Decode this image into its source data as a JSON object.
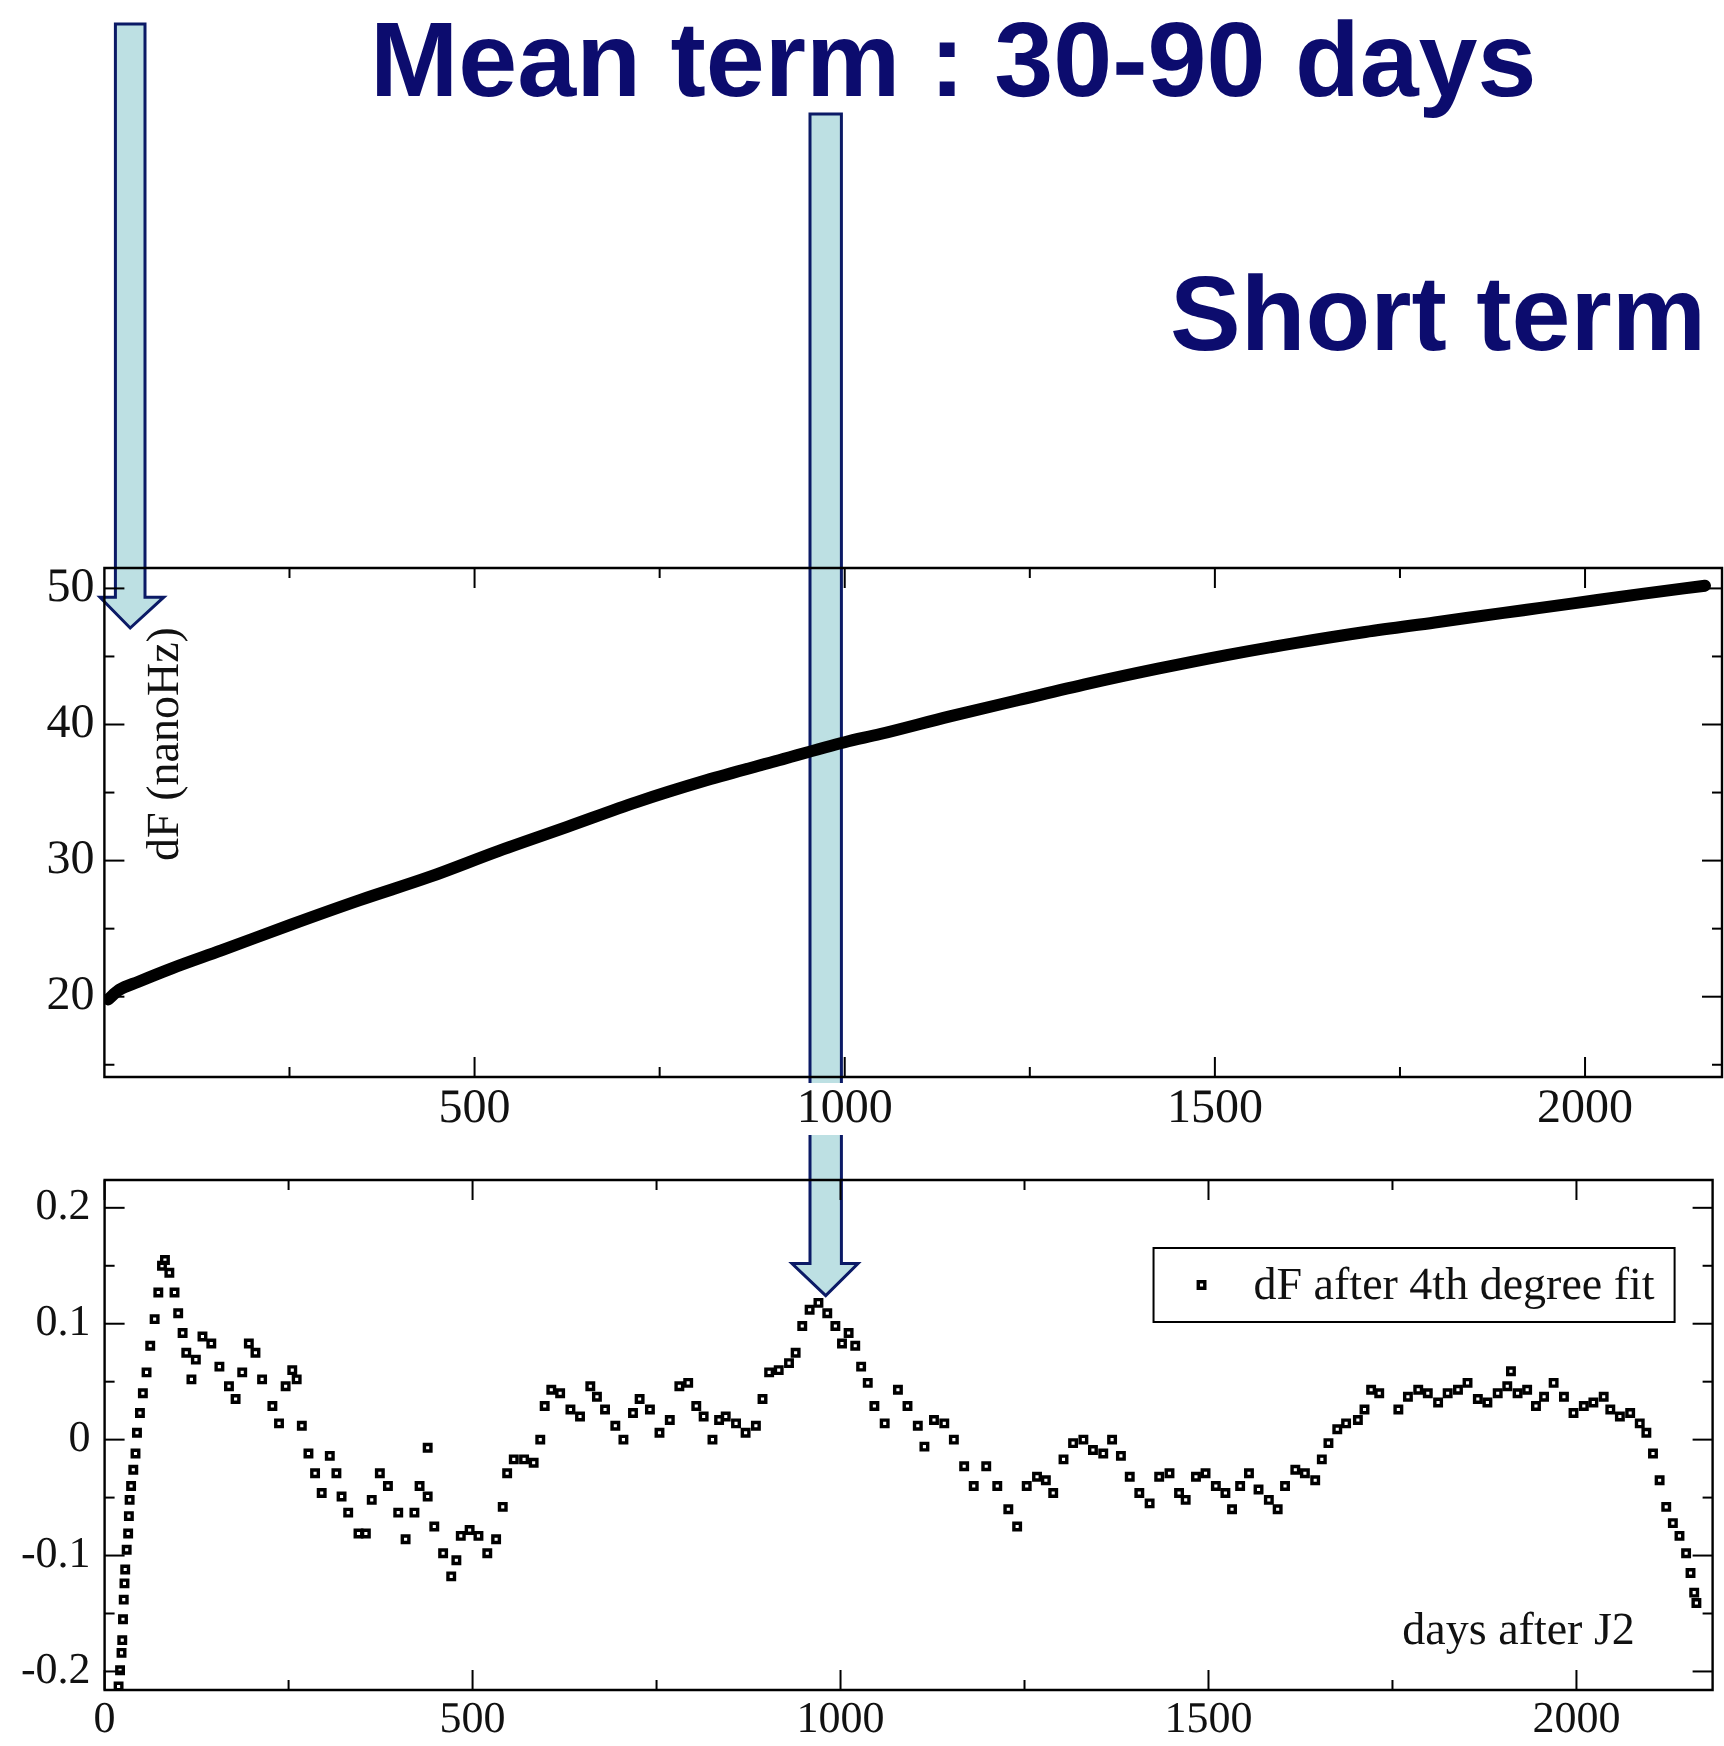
{
  "chart_data": [
    {
      "type": "line",
      "ylabel": "dF (nanoHz)",
      "annotations": [
        "Mean term : 30-90 days",
        "Short term"
      ],
      "marker": "none",
      "color": "#000000",
      "x": [
        5,
        20,
        46,
        92,
        158,
        252,
        345,
        439,
        532,
        626,
        719,
        813,
        906,
        1000,
        1048,
        1142,
        1235,
        1329,
        1423,
        1516,
        1610,
        1703,
        1797,
        1890,
        1984,
        2077,
        2162
      ],
      "values": [
        19.8,
        20.5,
        21.1,
        22.1,
        23.4,
        25.3,
        27.1,
        28.8,
        30.7,
        32.5,
        34.3,
        35.9,
        37.3,
        38.7,
        39.3,
        40.6,
        41.8,
        43.0,
        44.1,
        45.1,
        46.0,
        46.8,
        47.5,
        48.2,
        48.9,
        49.6,
        50.2
      ],
      "xlim": [
        0,
        2185
      ],
      "ylim": [
        14.1,
        51.5
      ],
      "xticks": [
        {
          "value": 250,
          "label": null
        },
        500,
        {
          "value": 750,
          "label": null
        },
        1000,
        {
          "value": 1250,
          "label": null
        },
        1500,
        {
          "value": 1750,
          "label": null
        },
        2000
      ],
      "yticks": [
        {
          "value": 15,
          "label": null
        },
        20,
        {
          "value": 25,
          "label": null
        },
        30,
        {
          "value": 35,
          "label": null
        },
        40,
        {
          "value": 45,
          "label": null
        },
        50
      ]
    },
    {
      "type": "scatter",
      "xlabel": "days after J2",
      "legend": "top right",
      "marker": "square",
      "x": [
        19,
        21,
        23,
        24,
        25,
        26,
        27,
        28,
        30,
        32,
        33,
        34,
        36,
        39,
        42,
        44,
        48,
        52,
        57,
        62,
        68,
        73,
        78,
        82,
        88,
        95,
        100,
        106,
        111,
        118,
        124,
        133,
        145,
        156,
        169,
        178,
        187,
        196,
        205,
        214,
        228,
        237,
        246,
        255,
        261,
        268,
        277,
        286,
        295,
        306,
        315,
        322,
        331,
        345,
        355,
        363,
        374,
        385,
        399,
        409,
        421,
        428,
        439,
        439,
        448,
        460,
        471,
        478,
        484,
        496,
        508,
        520,
        532,
        541,
        547,
        556,
        570,
        583,
        592,
        598,
        607,
        619,
        633,
        646,
        660,
        669,
        680,
        694,
        705,
        718,
        727,
        741,
        754,
        768,
        781,
        793,
        804,
        814,
        826,
        835,
        844,
        858,
        871,
        885,
        894,
        903,
        916,
        930,
        939,
        948,
        958,
        970,
        982,
        993,
        1002,
        1011,
        1020,
        1028,
        1037,
        1046,
        1060,
        1078,
        1091,
        1105,
        1114,
        1127,
        1141,
        1154,
        1168,
        1181,
        1198,
        1213,
        1228,
        1240,
        1253,
        1267,
        1279,
        1289,
        1303,
        1316,
        1330,
        1343,
        1357,
        1369,
        1381,
        1393,
        1406,
        1420,
        1433,
        1447,
        1460,
        1469,
        1483,
        1496,
        1510,
        1523,
        1532,
        1543,
        1555,
        1568,
        1582,
        1594,
        1604,
        1618,
        1631,
        1645,
        1654,
        1663,
        1675,
        1687,
        1703,
        1712,
        1721,
        1732,
        1758,
        1771,
        1785,
        1798,
        1812,
        1825,
        1839,
        1852,
        1866,
        1879,
        1893,
        1906,
        1911,
        1920,
        1933,
        1945,
        1956,
        1969,
        1983,
        1996,
        2010,
        2023,
        2037,
        2046,
        2059,
        2073,
        2086,
        2095,
        2104,
        2113,
        2122,
        2131,
        2140,
        2149,
        2155,
        2160,
        2163
      ],
      "series": [
        {
          "name": "dF after 4th degree fit",
          "color": "#000000",
          "values": [
            -0.213,
            -0.199,
            -0.184,
            -0.173,
            -0.155,
            -0.138,
            -0.124,
            -0.112,
            -0.095,
            -0.081,
            -0.066,
            -0.052,
            -0.04,
            -0.026,
            -0.012,
            0.006,
            0.023,
            0.04,
            0.058,
            0.081,
            0.104,
            0.127,
            0.15,
            0.155,
            0.144,
            0.127,
            0.109,
            0.092,
            0.075,
            0.052,
            0.069,
            0.089,
            0.083,
            0.063,
            0.046,
            0.035,
            0.058,
            0.083,
            0.075,
            0.052,
            0.029,
            0.014,
            0.046,
            0.06,
            0.052,
            0.012,
            -0.012,
            -0.029,
            -0.046,
            -0.014,
            -0.029,
            -0.049,
            -0.063,
            -0.081,
            -0.081,
            -0.052,
            -0.029,
            -0.04,
            -0.063,
            -0.086,
            -0.063,
            -0.04,
            -0.049,
            -0.007,
            -0.075,
            -0.098,
            -0.118,
            -0.104,
            -0.083,
            -0.078,
            -0.083,
            -0.098,
            -0.086,
            -0.058,
            -0.029,
            -0.017,
            -0.017,
            -0.02,
            0,
            0.029,
            0.043,
            0.04,
            0.026,
            0.02,
            0.046,
            0.037,
            0.026,
            0.012,
            0,
            0.023,
            0.035,
            0.026,
            0.006,
            0.017,
            0.046,
            0.049,
            0.029,
            0.02,
            0,
            0.017,
            0.02,
            0.014,
            0.006,
            0.012,
            0.035,
            0.058,
            0.06,
            0.066,
            0.075,
            0.098,
            0.112,
            0.118,
            0.109,
            0.098,
            0.083,
            0.092,
            0.081,
            0.063,
            0.049,
            0.029,
            0.014,
            0.043,
            0.029,
            0.012,
            -0.006,
            0.017,
            0.014,
            0,
            -0.023,
            -0.04,
            -0.023,
            -0.04,
            -0.06,
            -0.075,
            -0.04,
            -0.032,
            -0.035,
            -0.046,
            -0.017,
            -0.003,
            0,
            -0.009,
            -0.012,
            0,
            -0.014,
            -0.032,
            -0.046,
            -0.055,
            -0.032,
            -0.029,
            -0.046,
            -0.052,
            -0.032,
            -0.029,
            -0.04,
            -0.046,
            -0.06,
            -0.04,
            -0.029,
            -0.043,
            -0.052,
            -0.06,
            -0.04,
            -0.026,
            -0.029,
            -0.035,
            -0.017,
            -0.003,
            0.009,
            0.014,
            0.017,
            0.026,
            0.043,
            0.04,
            0.026,
            0.037,
            0.043,
            0.04,
            0.032,
            0.04,
            0.043,
            0.049,
            0.035,
            0.032,
            0.04,
            0.046,
            0.059,
            0.04,
            0.043,
            0.029,
            0.037,
            0.049,
            0.037,
            0.023,
            0.029,
            0.032,
            0.037,
            0.026,
            0.02,
            0.023,
            0.014,
            0.006,
            -0.012,
            -0.035,
            -0.058,
            -0.072,
            -0.083,
            -0.098,
            -0.115,
            -0.132,
            -0.141
          ]
        }
      ],
      "xlim": [
        0,
        2185
      ],
      "ylim": [
        -0.216,
        0.224
      ],
      "xticks": [
        0,
        {
          "value": 250,
          "label": null
        },
        500,
        {
          "value": 750,
          "label": null
        },
        1000,
        {
          "value": 1250,
          "label": null
        },
        1500,
        {
          "value": 1750,
          "label": null
        },
        2000
      ],
      "yticks": [
        -0.2,
        {
          "value": -0.15,
          "label": null
        },
        -0.1,
        {
          "value": -0.05,
          "label": null
        },
        0,
        {
          "value": 0.05,
          "label": null
        },
        0.1,
        {
          "value": 0.15,
          "label": null
        },
        0.2
      ]
    }
  ]
}
